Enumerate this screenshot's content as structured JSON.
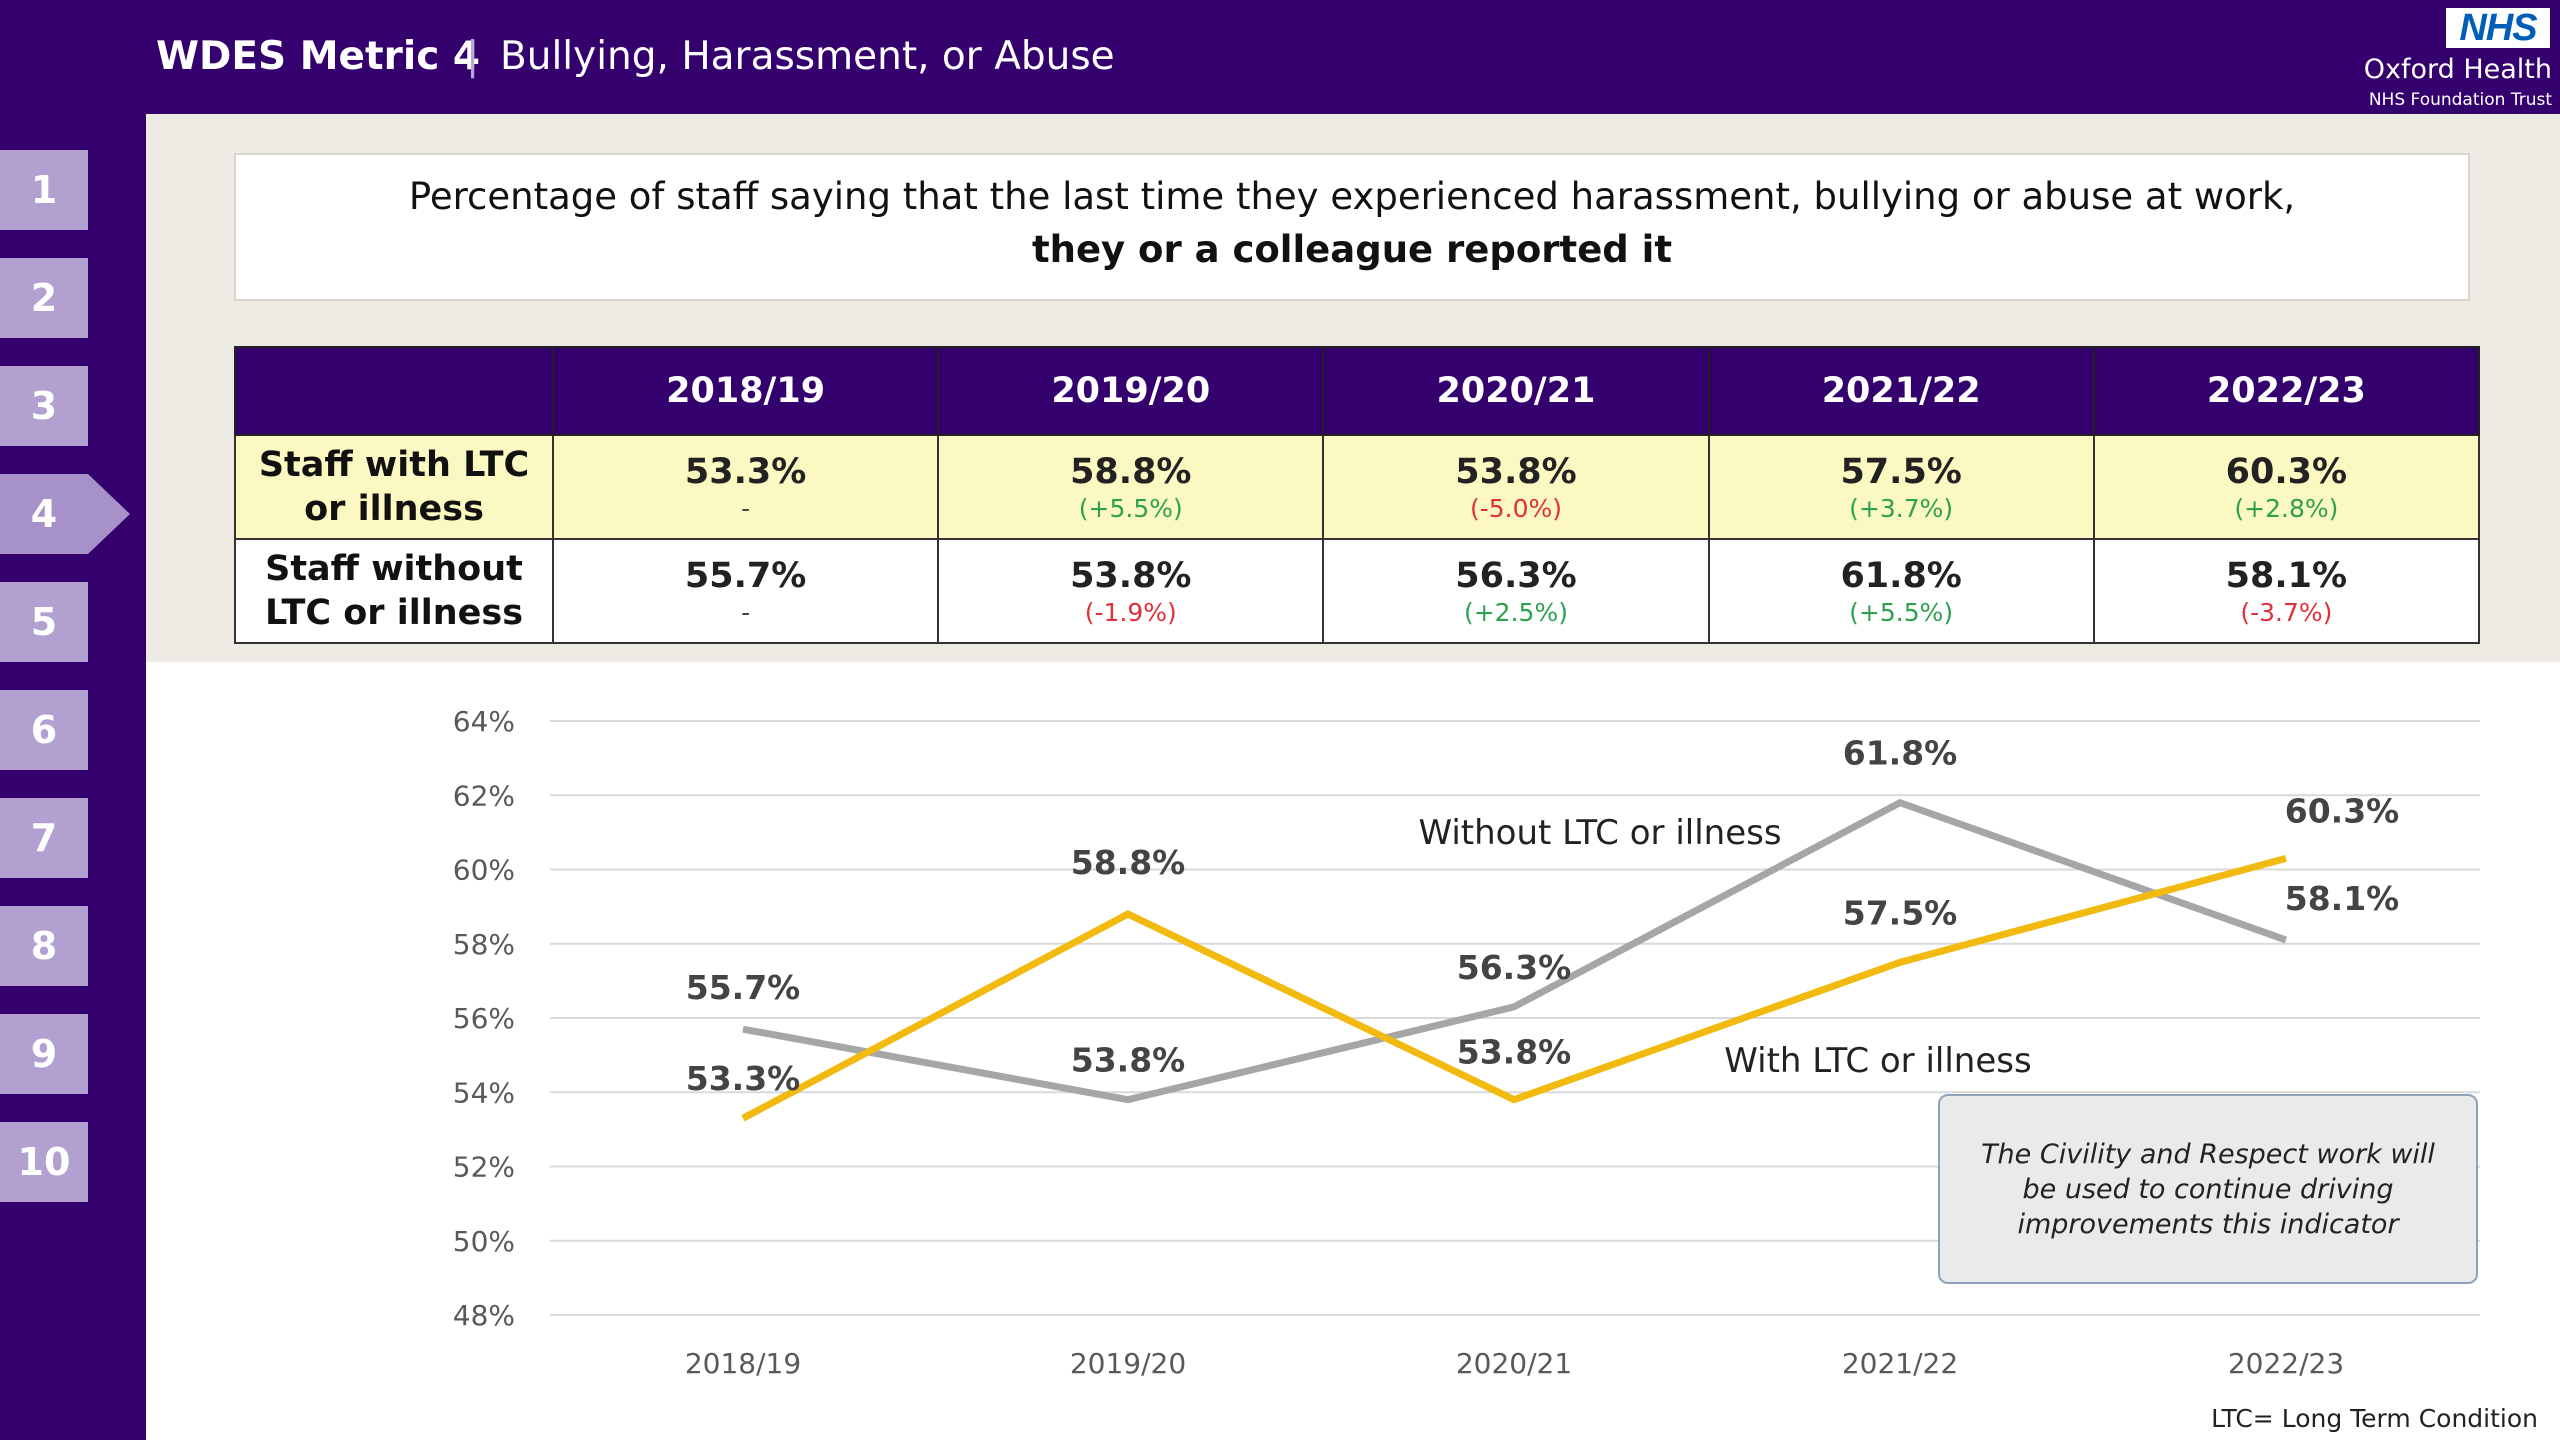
{
  "header": {
    "title_bold": "WDES Metric 4",
    "separator": "|",
    "title_sub": "Bullying, Harassment, or Abuse",
    "logo_text": "NHS",
    "org_name": "Oxford Health",
    "org_sub": "NHS Foundation Trust"
  },
  "sidebar": {
    "active_index": 3,
    "items": [
      {
        "label": "1"
      },
      {
        "label": "2"
      },
      {
        "label": "3"
      },
      {
        "label": "4"
      },
      {
        "label": "5"
      },
      {
        "label": "6"
      },
      {
        "label": "7"
      },
      {
        "label": "8"
      },
      {
        "label": "9"
      },
      {
        "label": "10"
      }
    ]
  },
  "question": {
    "line1": "Percentage of staff saying that the last time they experienced harassment, bullying or abuse at work,",
    "line2": "they or a colleague reported it"
  },
  "table": {
    "headers": [
      "",
      "2018/19",
      "2019/20",
      "2020/21",
      "2021/22",
      "2022/23"
    ],
    "rows": [
      {
        "label_line1": "Staff with LTC",
        "label_line2": "or illness",
        "cells": [
          {
            "value": "53.3%",
            "change": "-",
            "trend": "none"
          },
          {
            "value": "58.8%",
            "change": "(+5.5%)",
            "trend": "pos"
          },
          {
            "value": "53.8%",
            "change": "(-5.0%)",
            "trend": "neg"
          },
          {
            "value": "57.5%",
            "change": "(+3.7%)",
            "trend": "pos"
          },
          {
            "value": "60.3%",
            "change": "(+2.8%)",
            "trend": "pos"
          }
        ]
      },
      {
        "label_line1": "Staff without",
        "label_line2": "LTC or illness",
        "cells": [
          {
            "value": "55.7%",
            "change": "-",
            "trend": "none"
          },
          {
            "value": "53.8%",
            "change": "(-1.9%)",
            "trend": "neg"
          },
          {
            "value": "56.3%",
            "change": "(+2.5%)",
            "trend": "pos"
          },
          {
            "value": "61.8%",
            "change": "(+5.5%)",
            "trend": "pos"
          },
          {
            "value": "58.1%",
            "change": "(-3.7%)",
            "trend": "neg"
          }
        ]
      }
    ]
  },
  "colors": {
    "brand_purple": "#33006d",
    "with_ltc_line": "#f2b90f",
    "without_ltc_line": "#a6a6a6",
    "positive": "#2ea150",
    "negative": "#e0303a"
  },
  "chart_data": {
    "type": "line",
    "categories": [
      "2018/19",
      "2019/20",
      "2020/21",
      "2021/22",
      "2022/23"
    ],
    "series": [
      {
        "name": "With LTC or illness",
        "values": [
          53.3,
          58.8,
          53.8,
          57.5,
          60.3
        ],
        "labels": [
          "53.3%",
          "58.8%",
          "53.8%",
          "57.5%",
          "60.3%"
        ]
      },
      {
        "name": "Without LTC or illness",
        "values": [
          55.7,
          53.8,
          56.3,
          61.8,
          58.1
        ],
        "labels": [
          "55.7%",
          "53.8%",
          "56.3%",
          "61.8%",
          "58.1%"
        ]
      }
    ],
    "ylim": [
      48,
      64
    ],
    "yticks": [
      48,
      50,
      52,
      54,
      56,
      58,
      60,
      62,
      64
    ],
    "ytick_labels": [
      "48%",
      "50%",
      "52%",
      "54%",
      "56%",
      "58%",
      "60%",
      "62%",
      "64%"
    ],
    "grid": true,
    "legend": "inline labels"
  },
  "callout": {
    "text": "The Civility and Respect work will be used to continue driving improvements this indicator"
  },
  "footnote": "LTC= Long Term Condition"
}
